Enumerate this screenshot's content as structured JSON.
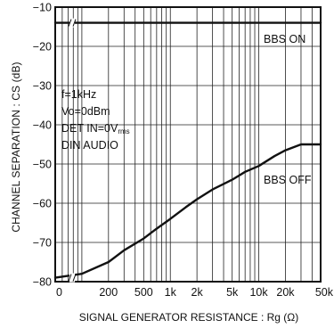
{
  "chart_data": {
    "type": "line",
    "title": "",
    "xlabel": "SIGNAL GENERATOR RESISTANCE : Rg (Ω)",
    "ylabel": "CHANNEL SEPARATION : CS (dB)",
    "x_scale": "log (with 0 at origin)",
    "x_tick_labels": [
      "0",
      "200",
      "500",
      "1k",
      "2k",
      "5k",
      "10k",
      "20k",
      "50k"
    ],
    "x_tick_values": [
      0,
      200,
      500,
      1000,
      2000,
      5000,
      10000,
      20000,
      50000
    ],
    "y_tick_labels": [
      "−10",
      "−20",
      "−30",
      "−40",
      "−50",
      "−60",
      "−70",
      "−80"
    ],
    "ylim": [
      -80,
      -10
    ],
    "grid": true,
    "conditions": [
      "f=1kHz",
      "Vo=0dBm",
      "DET IN=0V",
      "rms",
      "DIN AUDIO"
    ],
    "series": [
      {
        "name": "BBS ON",
        "x": [
          0,
          50,
          100,
          200,
          500,
          1000,
          2000,
          5000,
          10000,
          20000,
          50000
        ],
        "y": [
          -14,
          -14,
          -14,
          -14,
          -14,
          -14,
          -14,
          -14,
          -14,
          -14,
          -14
        ]
      },
      {
        "name": "BBS OFF",
        "x": [
          0,
          50,
          100,
          200,
          300,
          500,
          700,
          1000,
          1500,
          2000,
          3000,
          5000,
          7000,
          10000,
          15000,
          20000,
          30000,
          40000,
          50000
        ],
        "y": [
          -79,
          -79,
          -78,
          -75,
          -72,
          -69,
          -66.5,
          -64,
          -61,
          -59,
          -56.5,
          -54,
          -52,
          -50.5,
          -48,
          -46.5,
          -45,
          -45,
          -45
        ]
      }
    ]
  }
}
